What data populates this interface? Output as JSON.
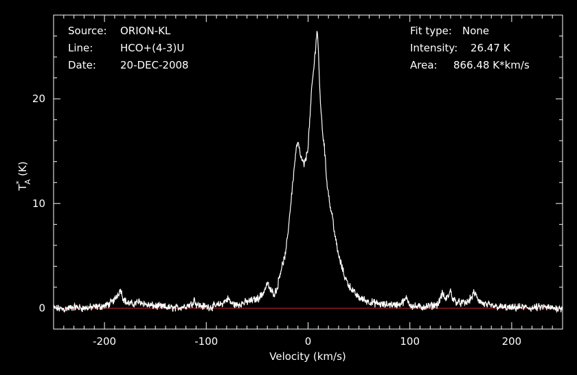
{
  "header": {
    "source_label": "Source:",
    "source_value": "ORION-KL",
    "line_label": "Line:",
    "line_value": "HCO+(4-3)U",
    "date_label": "Date:",
    "date_value": "20-DEC-2008",
    "fit_label": "Fit type:",
    "fit_value": "None",
    "intensity_label": "Intensity:",
    "intensity_value": "26.47 K",
    "area_label": "Area:",
    "area_value": "866.48 K*km/s"
  },
  "axes": {
    "xlabel": "Velocity (km/s)",
    "ylabel_main": "T",
    "ylabel_super": "*",
    "ylabel_sub": "A",
    "ylabel_unit": "(K)",
    "xticks": [
      "-200",
      "-100",
      "0",
      "100",
      "200"
    ],
    "yticks": [
      "0",
      "10",
      "20"
    ]
  },
  "colors": {
    "background": "#000000",
    "spectrum": "#ffffff",
    "baseline": "#cc2222",
    "frame": "#ffffff"
  },
  "chart_data": {
    "type": "line",
    "xlim": [
      -250,
      250
    ],
    "ylim": [
      -2,
      28
    ],
    "baseline_y": 0,
    "grid": false,
    "series": [
      {
        "x": [
          -250,
          -240,
          -230,
          -220,
          -210,
          -200,
          -195,
          -190,
          -186,
          -184,
          -182,
          -178,
          -172,
          -166,
          -162,
          -158,
          -150,
          -140,
          -130,
          -120,
          -114,
          -112,
          -110,
          -105,
          -95,
          -85,
          -80,
          -78,
          -76,
          -70,
          -60,
          -50,
          -45,
          -42,
          -40,
          -37,
          -33,
          -30,
          -28,
          -25,
          -22,
          -20,
          -18,
          -16,
          -14,
          -12,
          -10,
          -8,
          -6,
          -4,
          -2,
          0,
          2,
          4,
          6,
          8,
          9,
          10,
          11,
          12,
          14,
          16,
          18,
          20,
          22,
          24,
          26,
          28,
          30,
          33,
          36,
          40,
          45,
          50,
          55,
          60,
          65,
          70,
          75,
          80,
          85,
          90,
          95,
          97,
          99,
          102,
          110,
          120,
          128,
          130,
          132,
          135,
          138,
          140,
          142,
          146,
          150,
          155,
          158,
          161,
          163,
          165,
          168,
          172,
          180,
          190,
          200,
          210,
          220,
          230,
          240,
          250
        ],
        "y": [
          0.0,
          -0.1,
          0.1,
          0.0,
          0.1,
          0.2,
          0.4,
          0.8,
          1.5,
          1.8,
          1.0,
          0.5,
          0.4,
          0.6,
          0.5,
          0.3,
          0.2,
          0.1,
          0.0,
          0.2,
          0.4,
          0.9,
          0.4,
          0.2,
          0.1,
          0.4,
          0.8,
          0.9,
          0.5,
          0.3,
          0.6,
          0.9,
          1.3,
          1.9,
          2.4,
          1.7,
          1.4,
          2.0,
          3.2,
          4.2,
          5.2,
          7.0,
          9.0,
          11.0,
          13.0,
          15.0,
          15.9,
          14.8,
          14.1,
          13.7,
          14.3,
          15.5,
          18.5,
          21.5,
          23.2,
          25.8,
          26.5,
          25.0,
          22.0,
          20.0,
          17.0,
          15.5,
          12.5,
          11.0,
          9.5,
          8.8,
          7.2,
          6.0,
          5.0,
          4.0,
          3.0,
          2.2,
          1.5,
          1.0,
          0.8,
          0.6,
          0.5,
          0.4,
          0.3,
          0.4,
          0.3,
          0.4,
          0.7,
          1.0,
          0.5,
          0.2,
          0.1,
          0.2,
          0.4,
          1.0,
          1.4,
          0.8,
          1.2,
          1.7,
          0.9,
          0.6,
          0.5,
          0.5,
          0.7,
          1.1,
          1.5,
          1.2,
          0.7,
          0.4,
          0.2,
          0.1,
          0.0,
          0.1,
          0.0,
          0.1,
          0.0,
          0.0
        ]
      }
    ]
  }
}
